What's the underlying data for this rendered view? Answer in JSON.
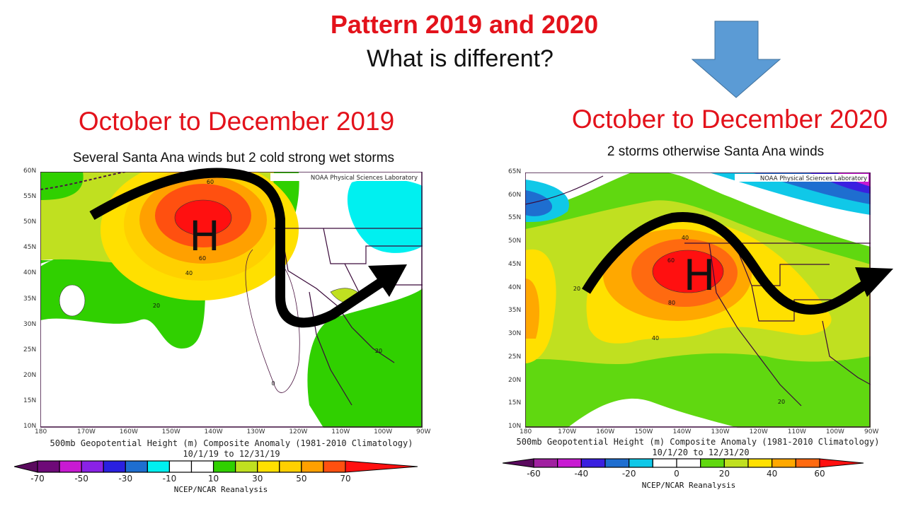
{
  "slide": {
    "title": "Pattern 2019 and 2020",
    "subtitle": "What is different?",
    "arrow_color": "#5b9bd5"
  },
  "maps": [
    {
      "period": "October to December 2019",
      "description": "Several Santa Ana winds but 2 cold strong wet storms",
      "credit": "NOAA Physical Sciences Laboratory",
      "high_label": "H",
      "lat_ticks": [
        "60N",
        "55N",
        "50N",
        "45N",
        "40N",
        "35N",
        "30N",
        "25N",
        "20N",
        "15N",
        "10N"
      ],
      "lon_ticks": [
        "180",
        "170W",
        "160W",
        "150W",
        "140W",
        "130W",
        "120W",
        "110W",
        "100W",
        "90W"
      ],
      "contour_labels": [
        "60",
        "60",
        "40",
        "20",
        "20",
        "0"
      ],
      "caption": "500mb Geopotential Height (m) Composite Anomaly (1981-2010 Climatology)",
      "date_range": "10/1/19  to 12/31/19",
      "source": "NCEP/NCAR Reanalysis",
      "colorbar_labels": [
        "-70",
        "-50",
        "-30",
        "-10",
        "10",
        "30",
        "50",
        "70"
      ],
      "colorbar_colors": [
        "#5a0a5e",
        "#6e0a78",
        "#c81ad2",
        "#8a22e6",
        "#2a20e0",
        "#1e6ed0",
        "#00f0f0",
        "#ffffff",
        "#ffffff",
        "#30d000",
        "#c0e020",
        "#ffe000",
        "#ffd000",
        "#ffa000",
        "#ff5010",
        "#ff1010"
      ]
    },
    {
      "period": "October to December 2020",
      "description": "2 storms otherwise Santa Ana winds",
      "credit": "NOAA Physical Sciences Laboratory",
      "high_label": "H",
      "lat_ticks": [
        "65N",
        "60N",
        "55N",
        "50N",
        "45N",
        "40N",
        "35N",
        "30N",
        "25N",
        "20N",
        "15N",
        "10N"
      ],
      "lon_ticks": [
        "180",
        "170W",
        "160W",
        "150W",
        "140W",
        "130W",
        "120W",
        "110W",
        "100W",
        "90W"
      ],
      "contour_labels": [
        "20",
        "40",
        "60",
        "80",
        "40",
        "20",
        "20"
      ],
      "caption": "500mb Geopotential Height (m) Composite Anomaly (1981-2010 Climatology)",
      "date_range": "10/1/20  to 12/31/20",
      "source": "NCEP/NCAR Reanalysis",
      "colorbar_labels": [
        "-60",
        "-40",
        "-20",
        "0",
        "20",
        "40",
        "60"
      ],
      "colorbar_colors": [
        "#5a0a5e",
        "#a020a0",
        "#c81ad2",
        "#3a20e0",
        "#1e6ed0",
        "#10c8e8",
        "#ffffff",
        "#ffffff",
        "#60d810",
        "#c0e020",
        "#ffe000",
        "#ffa800",
        "#ff6a10",
        "#ff1010"
      ]
    }
  ]
}
